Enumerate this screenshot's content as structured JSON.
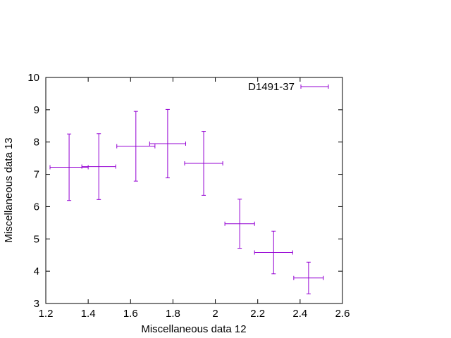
{
  "chart_data": {
    "type": "scatter",
    "title": "",
    "xlabel": "Miscellaneous data 12",
    "ylabel": "Miscellaneous data 13",
    "xlim": [
      1.2,
      2.6
    ],
    "ylim": [
      3,
      10
    ],
    "x_ticks": [
      "1.2",
      "1.4",
      "1.6",
      "1.8",
      "2",
      "2.2",
      "2.4",
      "2.6"
    ],
    "y_ticks": [
      "3",
      "4",
      "5",
      "6",
      "7",
      "8",
      "9",
      "10"
    ],
    "grid": false,
    "legend_position": "top-right",
    "series": [
      {
        "name": "D1491-37",
        "color": "#9400d3",
        "points": [
          {
            "x": 1.31,
            "y": 7.22,
            "xerr": 0.09,
            "yerr": 1.03
          },
          {
            "x": 1.45,
            "y": 7.24,
            "xerr": 0.08,
            "yerr": 1.02
          },
          {
            "x": 1.625,
            "y": 7.87,
            "xerr": 0.09,
            "yerr": 1.08
          },
          {
            "x": 1.775,
            "y": 7.95,
            "xerr": 0.085,
            "yerr": 1.06
          },
          {
            "x": 1.945,
            "y": 7.34,
            "xerr": 0.09,
            "yerr": 0.99
          },
          {
            "x": 2.115,
            "y": 5.47,
            "xerr": 0.07,
            "yerr": 0.76
          },
          {
            "x": 2.275,
            "y": 4.58,
            "xerr": 0.09,
            "yerr": 0.66
          },
          {
            "x": 2.44,
            "y": 3.79,
            "xerr": 0.07,
            "yerr": 0.49
          }
        ]
      }
    ]
  }
}
